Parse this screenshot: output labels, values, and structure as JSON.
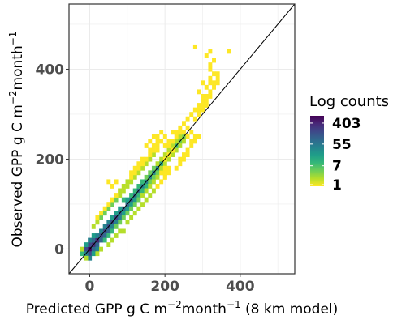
{
  "chart_data": {
    "type": "heatmap",
    "title": "",
    "xlabel": {
      "base": "Predicted GPP g C m",
      "sup1": "−2",
      "mid": "month",
      "sup2": "−1",
      "tail": " (8 km model)"
    },
    "ylabel": {
      "base": "Observed GPP g C m",
      "sup1": "−2",
      "mid": "month",
      "sup2": "−1"
    },
    "xlim": [
      -55,
      545
    ],
    "ylim": [
      -55,
      545
    ],
    "x_ticks": [
      0,
      200,
      400
    ],
    "y_ticks": [
      0,
      200,
      400
    ],
    "x_tick_labels": [
      "0",
      "200",
      "400"
    ],
    "y_tick_labels": [
      "0",
      "200",
      "400"
    ],
    "grid": true,
    "bin_width": 10,
    "reference_line": {
      "slope": 1,
      "intercept": 0
    },
    "legend": {
      "title": "Log counts",
      "placement": "right",
      "labels": [
        "403",
        "55",
        "7",
        "1"
      ],
      "label_counts": [
        403,
        55,
        7,
        1
      ],
      "max_count": 800,
      "colors": [
        "#fde725",
        "#b5de2b",
        "#6ece58",
        "#35b779",
        "#1f9e89",
        "#26828e",
        "#31688e",
        "#3e4989",
        "#482878",
        "#440154"
      ]
    },
    "bins": [
      [
        0,
        0,
        800
      ],
      [
        0,
        -10,
        220
      ],
      [
        -10,
        0,
        160
      ],
      [
        10,
        10,
        380
      ],
      [
        10,
        0,
        120
      ],
      [
        0,
        10,
        140
      ],
      [
        -10,
        -10,
        40
      ],
      [
        20,
        10,
        90
      ],
      [
        10,
        20,
        120
      ],
      [
        20,
        20,
        300
      ],
      [
        30,
        30,
        260
      ],
      [
        40,
        40,
        220
      ],
      [
        50,
        50,
        180
      ],
      [
        60,
        60,
        160
      ],
      [
        70,
        70,
        140
      ],
      [
        80,
        80,
        120
      ],
      [
        90,
        90,
        100
      ],
      [
        100,
        100,
        90
      ],
      [
        110,
        110,
        80
      ],
      [
        120,
        120,
        70
      ],
      [
        130,
        130,
        60
      ],
      [
        140,
        140,
        55
      ],
      [
        150,
        150,
        50
      ],
      [
        160,
        160,
        40
      ],
      [
        170,
        170,
        35
      ],
      [
        180,
        180,
        30
      ],
      [
        190,
        190,
        25
      ],
      [
        200,
        200,
        18
      ],
      [
        210,
        210,
        12
      ],
      [
        220,
        220,
        10
      ],
      [
        230,
        230,
        8
      ],
      [
        240,
        240,
        6
      ],
      [
        250,
        250,
        4
      ],
      [
        -10,
        10,
        25
      ],
      [
        -20,
        -10,
        10
      ],
      [
        0,
        -20,
        30
      ],
      [
        10,
        -10,
        20
      ],
      [
        20,
        0,
        40
      ],
      [
        0,
        20,
        30
      ],
      [
        10,
        30,
        25
      ],
      [
        20,
        30,
        50
      ],
      [
        30,
        20,
        80
      ],
      [
        30,
        40,
        40
      ],
      [
        40,
        30,
        80
      ],
      [
        40,
        50,
        40
      ],
      [
        50,
        40,
        60
      ],
      [
        50,
        60,
        30
      ],
      [
        60,
        50,
        50
      ],
      [
        60,
        70,
        20
      ],
      [
        70,
        60,
        40
      ],
      [
        70,
        80,
        20
      ],
      [
        80,
        70,
        30
      ],
      [
        80,
        90,
        15
      ],
      [
        90,
        80,
        25
      ],
      [
        90,
        110,
        10
      ],
      [
        100,
        90,
        20
      ],
      [
        100,
        110,
        15
      ],
      [
        110,
        100,
        18
      ],
      [
        110,
        120,
        12
      ],
      [
        120,
        110,
        15
      ],
      [
        120,
        130,
        10
      ],
      [
        130,
        120,
        12
      ],
      [
        130,
        140,
        8
      ],
      [
        140,
        130,
        10
      ],
      [
        150,
        140,
        8
      ],
      [
        140,
        150,
        7
      ],
      [
        150,
        160,
        6
      ],
      [
        160,
        150,
        6
      ],
      [
        160,
        170,
        5
      ],
      [
        170,
        160,
        5
      ],
      [
        170,
        180,
        4
      ],
      [
        180,
        170,
        4
      ],
      [
        180,
        190,
        3
      ],
      [
        190,
        180,
        3
      ],
      [
        190,
        200,
        3
      ],
      [
        200,
        190,
        2
      ],
      [
        200,
        210,
        2
      ],
      [
        210,
        200,
        2
      ],
      [
        20,
        60,
        3
      ],
      [
        30,
        70,
        4
      ],
      [
        40,
        80,
        5
      ],
      [
        50,
        90,
        4
      ],
      [
        60,
        100,
        5
      ],
      [
        70,
        110,
        4
      ],
      [
        80,
        120,
        3
      ],
      [
        90,
        130,
        3
      ],
      [
        100,
        140,
        3
      ],
      [
        110,
        150,
        3
      ],
      [
        120,
        160,
        2
      ],
      [
        130,
        170,
        2
      ],
      [
        140,
        180,
        2
      ],
      [
        150,
        190,
        2
      ],
      [
        160,
        200,
        2
      ],
      [
        170,
        210,
        2
      ],
      [
        40,
        20,
        8
      ],
      [
        50,
        30,
        8
      ],
      [
        60,
        40,
        7
      ],
      [
        70,
        50,
        6
      ],
      [
        80,
        60,
        6
      ],
      [
        90,
        70,
        5
      ],
      [
        100,
        80,
        5
      ],
      [
        110,
        90,
        4
      ],
      [
        120,
        100,
        4
      ],
      [
        130,
        110,
        4
      ],
      [
        140,
        120,
        3
      ],
      [
        150,
        130,
        3
      ],
      [
        160,
        140,
        3
      ],
      [
        170,
        150,
        2
      ],
      [
        180,
        160,
        2
      ],
      [
        190,
        170,
        2
      ],
      [
        200,
        180,
        2
      ],
      [
        50,
        10,
        2
      ],
      [
        60,
        20,
        2
      ],
      [
        70,
        30,
        3
      ],
      [
        80,
        40,
        2
      ],
      [
        90,
        40,
        2
      ],
      [
        100,
        60,
        2
      ],
      [
        110,
        70,
        2
      ],
      [
        120,
        80,
        2
      ],
      [
        130,
        90,
        2
      ],
      [
        140,
        100,
        2
      ],
      [
        150,
        110,
        2
      ],
      [
        160,
        120,
        2
      ],
      [
        170,
        130,
        2
      ],
      [
        180,
        140,
        1
      ],
      [
        190,
        150,
        1
      ],
      [
        200,
        160,
        1
      ],
      [
        210,
        170,
        1
      ],
      [
        10,
        50,
        2
      ],
      [
        20,
        70,
        1
      ],
      [
        30,
        80,
        1
      ],
      [
        40,
        90,
        1
      ],
      [
        50,
        100,
        1
      ],
      [
        60,
        110,
        1
      ],
      [
        70,
        120,
        1
      ],
      [
        80,
        130,
        1
      ],
      [
        90,
        140,
        1
      ],
      [
        100,
        150,
        1
      ],
      [
        110,
        160,
        1
      ],
      [
        120,
        170,
        1
      ],
      [
        130,
        180,
        1
      ],
      [
        140,
        190,
        1
      ],
      [
        150,
        200,
        1
      ],
      [
        160,
        210,
        1
      ],
      [
        170,
        220,
        1
      ],
      [
        180,
        230,
        1
      ],
      [
        190,
        240,
        1
      ],
      [
        200,
        250,
        1
      ],
      [
        -20,
        0,
        3
      ],
      [
        -10,
        -20,
        2
      ],
      [
        20,
        -10,
        2
      ],
      [
        30,
        0,
        3
      ],
      [
        210,
        220,
        3
      ],
      [
        220,
        210,
        3
      ],
      [
        220,
        230,
        3
      ],
      [
        230,
        220,
        2
      ],
      [
        230,
        240,
        2
      ],
      [
        240,
        230,
        2
      ],
      [
        240,
        250,
        2
      ],
      [
        250,
        240,
        2
      ],
      [
        250,
        260,
        1
      ],
      [
        260,
        250,
        1
      ],
      [
        260,
        270,
        1
      ],
      [
        270,
        260,
        1
      ],
      [
        210,
        230,
        1
      ],
      [
        220,
        240,
        1
      ],
      [
        230,
        250,
        1
      ],
      [
        240,
        260,
        1
      ],
      [
        200,
        230,
        1
      ],
      [
        210,
        240,
        1
      ],
      [
        230,
        260,
        1
      ],
      [
        220,
        260,
        1
      ],
      [
        240,
        270,
        1
      ],
      [
        250,
        280,
        1
      ],
      [
        260,
        290,
        1
      ],
      [
        270,
        300,
        1
      ],
      [
        280,
        310,
        1
      ],
      [
        290,
        320,
        1
      ],
      [
        300,
        330,
        1
      ],
      [
        310,
        340,
        1
      ],
      [
        320,
        350,
        1
      ],
      [
        280,
        290,
        1
      ],
      [
        290,
        300,
        1
      ],
      [
        300,
        310,
        1
      ],
      [
        310,
        320,
        1
      ],
      [
        290,
        310,
        1
      ],
      [
        300,
        320,
        1
      ],
      [
        310,
        330,
        1
      ],
      [
        320,
        340,
        1
      ],
      [
        330,
        360,
        1
      ],
      [
        330,
        370,
        1
      ],
      [
        320,
        370,
        1
      ],
      [
        340,
        370,
        1
      ],
      [
        340,
        380,
        1
      ],
      [
        330,
        390,
        1
      ],
      [
        340,
        390,
        1
      ],
      [
        320,
        400,
        1
      ],
      [
        320,
        410,
        1
      ],
      [
        330,
        420,
        1
      ],
      [
        310,
        430,
        1
      ],
      [
        320,
        440,
        1
      ],
      [
        370,
        440,
        1
      ],
      [
        280,
        450,
        1
      ],
      [
        300,
        340,
        1
      ],
      [
        290,
        350,
        1
      ],
      [
        310,
        360,
        1
      ],
      [
        300,
        370,
        1
      ],
      [
        320,
        380,
        1
      ],
      [
        230,
        180,
        1
      ],
      [
        240,
        190,
        1
      ],
      [
        250,
        200,
        1
      ],
      [
        260,
        210,
        1
      ],
      [
        240,
        200,
        1
      ],
      [
        250,
        210,
        1
      ],
      [
        260,
        220,
        1
      ],
      [
        270,
        230,
        1
      ],
      [
        280,
        240,
        1
      ],
      [
        290,
        250,
        1
      ],
      [
        270,
        240,
        1
      ],
      [
        280,
        250,
        1
      ],
      [
        190,
        170,
        1
      ],
      [
        200,
        170,
        1
      ],
      [
        200,
        160,
        1
      ],
      [
        190,
        180,
        2
      ],
      [
        180,
        220,
        1
      ],
      [
        180,
        240,
        1
      ],
      [
        170,
        250,
        1
      ],
      [
        190,
        260,
        1
      ],
      [
        200,
        180,
        1
      ],
      [
        210,
        180,
        1
      ],
      [
        200,
        170,
        1
      ],
      [
        200,
        200,
        1
      ],
      [
        210,
        210,
        1
      ],
      [
        220,
        220,
        1
      ],
      [
        160,
        220,
        1
      ],
      [
        150,
        230,
        1
      ],
      [
        170,
        230,
        1
      ],
      [
        180,
        250,
        1
      ],
      [
        160,
        240,
        1
      ],
      [
        50,
        150,
        1
      ],
      [
        60,
        140,
        1
      ],
      [
        70,
        150,
        1
      ],
      [
        80,
        130,
        2
      ],
      [
        90,
        140,
        2
      ],
      [
        100,
        150,
        2
      ],
      [
        110,
        170,
        1
      ],
      [
        120,
        180,
        1
      ],
      [
        130,
        190,
        1
      ],
      [
        140,
        200,
        1
      ]
    ]
  }
}
